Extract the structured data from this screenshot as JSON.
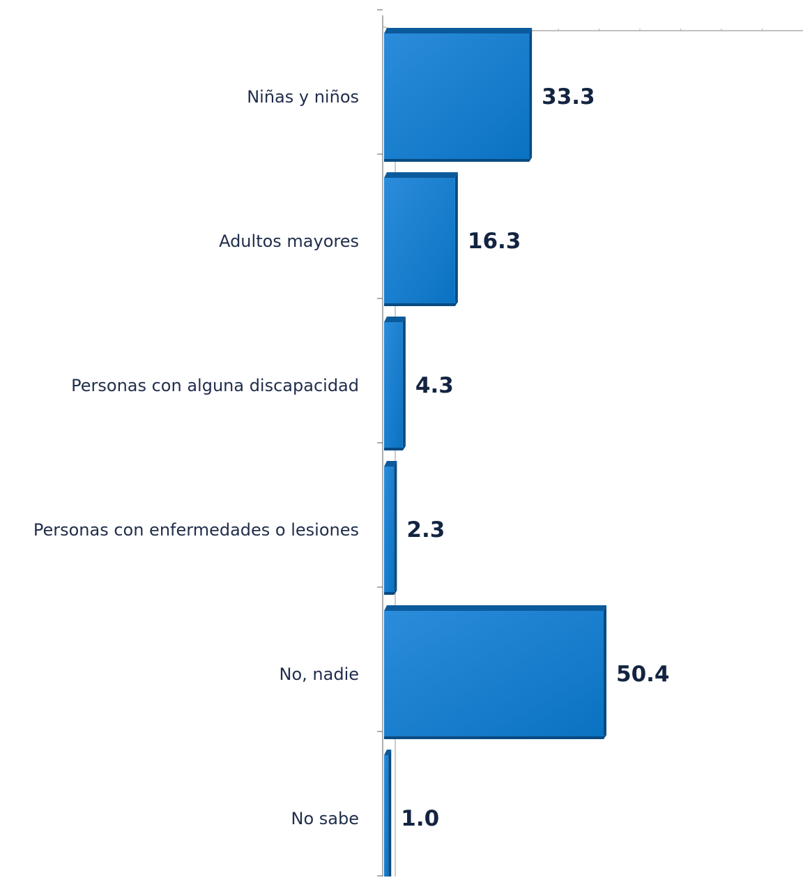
{
  "chart_data": {
    "type": "bar",
    "orientation": "horizontal",
    "categories": [
      "Niñas y niños",
      "Adultos mayores",
      "Personas con alguna discapacidad",
      "Personas con enfermedades o lesiones",
      "No, nadie",
      "No sabe"
    ],
    "values": [
      33.3,
      16.3,
      4.3,
      2.3,
      50.4,
      1.0
    ],
    "value_labels": [
      "33.3",
      "16.3",
      "4.3",
      "2.3",
      "50.4",
      "1.0"
    ],
    "title": "",
    "xlabel": "",
    "ylabel": "",
    "xlim": [
      0,
      100
    ],
    "grid": false,
    "legend": "none",
    "style": "3d-bar",
    "colors": {
      "bar_front": "#0A76C9",
      "bar_front_light": "#2B8CDA",
      "bar_top": "#0B5A9C",
      "bar_side": "#084A82",
      "value_text": "#132441",
      "category_text": "#1F2D4A",
      "axis": "#8C8C8C"
    }
  }
}
